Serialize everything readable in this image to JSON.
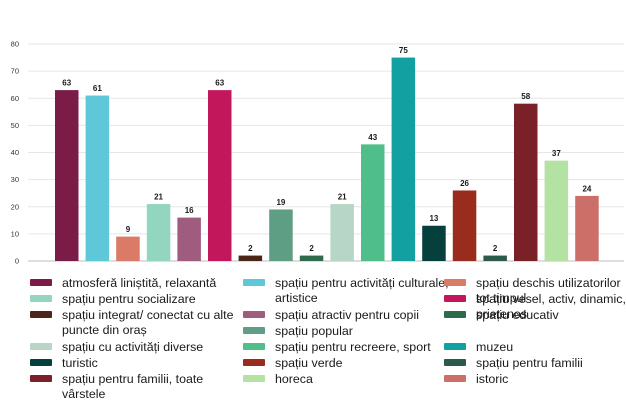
{
  "chart_data": {
    "type": "bar",
    "ylim": [
      0,
      80
    ],
    "yticks": [
      0,
      10,
      20,
      30,
      40,
      50,
      60,
      70,
      80
    ],
    "grid": true,
    "legend_position": "bottom",
    "bars": [
      {
        "label": "atmosferă liniștită, relaxantă",
        "value": 63,
        "color": "#7a1c45"
      },
      {
        "label": "spațiu pentru activități culturale, artistice",
        "value": 61,
        "color": "#5ec8d8"
      },
      {
        "label": "spațiu deschis utilizatorilor tot timpul",
        "value": 9,
        "color": "#d97b66"
      },
      {
        "label": "spațiu pentru socializare",
        "value": 21,
        "color": "#93d6bf"
      },
      {
        "label": "spațiu atractiv pentru copii",
        "value": 16,
        "color": "#a05c7e"
      },
      {
        "label": "spațiu vesel, activ, dinamic, prietenos",
        "value": 63,
        "color": "#c2185b"
      },
      {
        "label": "spațiu integrat/ conectat cu alte puncte din oraș",
        "value": 2,
        "color": "#4a2518"
      },
      {
        "label": "spațiu popular",
        "value": 19,
        "color": "#5e9e84"
      },
      {
        "label": "spațiu educativ",
        "value": 2,
        "color": "#2e6b4b"
      },
      {
        "label": "spațiu cu activități diverse",
        "value": 21,
        "color": "#b7d6c8"
      },
      {
        "label": "spațiu pentru recreere, sport",
        "value": 43,
        "color": "#50be8a"
      },
      {
        "label": "muzeu",
        "value": 75,
        "color": "#12a0a0"
      },
      {
        "label": "turistic",
        "value": 13,
        "color": "#06403d"
      },
      {
        "label": "spațiu verde",
        "value": 26,
        "color": "#992c1c"
      },
      {
        "label": "spațiu pentru familii",
        "value": 2,
        "color": "#2a5b48"
      },
      {
        "label": "spațiu pentru familii, toate vârstele",
        "value": 58,
        "color": "#7a2028"
      },
      {
        "label": "horeca",
        "value": 37,
        "color": "#b3e2a2"
      },
      {
        "label": "istoric",
        "value": 24,
        "color": "#cd6f69"
      }
    ],
    "legend_columns": [
      [
        0,
        3,
        6,
        9,
        12,
        15
      ],
      [
        1,
        4,
        7,
        10,
        13,
        16
      ],
      [
        2,
        5,
        8,
        11,
        14,
        17
      ]
    ]
  }
}
